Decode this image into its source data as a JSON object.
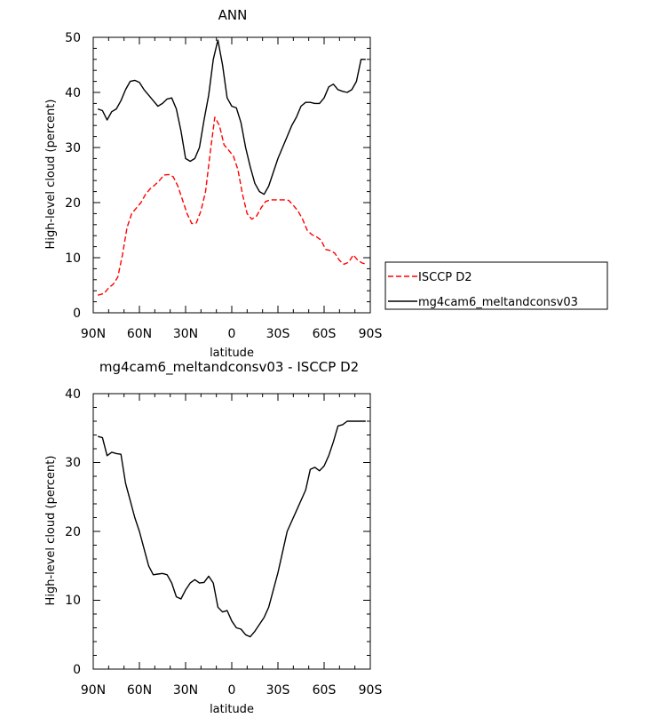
{
  "chart_data": [
    {
      "type": "line",
      "title": "ANN",
      "xlabel": "latitude",
      "ylabel": "High-level cloud (percent)",
      "x_ticklabels": [
        "90N",
        "60N",
        "30N",
        "0",
        "30S",
        "60S",
        "90S"
      ],
      "y_ticklabels": [
        "0",
        "10",
        "20",
        "30",
        "40",
        "50"
      ],
      "xlim": [
        90,
        -90
      ],
      "ylim": [
        0,
        50
      ],
      "legend_position": "right",
      "series": [
        {
          "name": "ISCCP D2",
          "color": "#ff0000",
          "style": "dashed",
          "x": [
            87,
            83,
            80,
            77,
            74,
            71,
            68,
            65,
            62,
            59,
            56,
            53,
            50,
            47,
            44,
            41,
            38,
            35,
            32,
            29,
            26,
            23,
            20,
            17,
            14,
            11,
            8,
            5,
            2,
            -1,
            -4,
            -7,
            -10,
            -13,
            -16,
            -19,
            -22,
            -25,
            -28,
            -31,
            -34,
            -37,
            -40,
            -43,
            -46,
            -49,
            -52,
            -55,
            -58,
            -61,
            -64,
            -67,
            -70,
            -73,
            -76,
            -79,
            -82,
            -85,
            -88
          ],
          "y": [
            3.2,
            3.5,
            4.5,
            5.2,
            6.5,
            10.5,
            15.5,
            18,
            19,
            20,
            21.5,
            22.5,
            23.2,
            24,
            25,
            25.1,
            24.7,
            23,
            20.5,
            18,
            16.2,
            16.3,
            18.5,
            22,
            29,
            35.5,
            34,
            30.5,
            29.5,
            28.5,
            26,
            21.5,
            18,
            17,
            17.5,
            19,
            20.2,
            20.5,
            20.5,
            20.5,
            20.5,
            20.4,
            19.5,
            18.5,
            17,
            15,
            14.2,
            13.8,
            13.2,
            11.5,
            11.3,
            10.8,
            9.5,
            8.8,
            9.2,
            10.5,
            9.5,
            9,
            8.8
          ],
          "x_visible_max": -89
        },
        {
          "name": "mg4cam6_meltandconsv03",
          "color": "#000000",
          "style": "solid",
          "x": [
            87,
            84,
            81,
            78,
            75,
            72,
            69,
            66,
            63,
            60,
            57,
            54,
            51,
            48,
            45,
            42,
            39,
            36,
            33,
            30,
            27,
            24,
            21,
            18,
            15,
            12,
            9,
            6,
            3,
            0,
            -3,
            -6,
            -9,
            -12,
            -15,
            -18,
            -21,
            -24,
            -27,
            -30,
            -33,
            -36,
            -39,
            -42,
            -45,
            -48,
            -51,
            -54,
            -57,
            -60,
            -63,
            -66,
            -69,
            -72,
            -75,
            -78,
            -81,
            -84,
            -87
          ],
          "y": [
            37,
            36.7,
            35,
            36.5,
            37,
            38.5,
            40.5,
            42,
            42.2,
            41.8,
            40.5,
            39.5,
            38.5,
            37.5,
            38,
            38.8,
            39,
            37,
            33,
            28,
            27.5,
            28,
            30,
            35,
            39.5,
            46,
            49.5,
            45,
            39,
            37.5,
            37.2,
            34.5,
            30,
            26.5,
            23.5,
            22,
            21.5,
            23,
            25.5,
            28,
            30,
            32,
            34,
            35.5,
            37.5,
            38.2,
            38.2,
            38,
            38,
            39,
            41,
            41.5,
            40.5,
            40.2,
            40,
            40.5,
            42,
            46,
            46
          ]
        }
      ]
    },
    {
      "type": "line",
      "title": "mg4cam6_meltandconsv03 - ISCCP D2",
      "xlabel": "latitude",
      "ylabel": "High-level cloud (percent)",
      "x_ticklabels": [
        "90N",
        "60N",
        "30N",
        "0",
        "30S",
        "60S",
        "90S"
      ],
      "y_ticklabels": [
        "0",
        "10",
        "20",
        "30",
        "40"
      ],
      "xlim": [
        90,
        -90
      ],
      "ylim": [
        0,
        40
      ],
      "series": [
        {
          "color": "#000000",
          "style": "solid",
          "x": [
            87,
            84,
            81,
            78,
            75,
            72,
            69,
            66,
            63,
            60,
            57,
            54,
            51,
            48,
            45,
            42,
            39,
            36,
            33,
            30,
            27,
            24,
            21,
            18,
            15,
            12,
            9,
            6,
            3,
            0,
            -3,
            -6,
            -9,
            -12,
            -15,
            -18,
            -21,
            -24,
            -27,
            -30,
            -33,
            -36,
            -39,
            -42,
            -45,
            -48,
            -51,
            -54,
            -57,
            -60,
            -63,
            -66,
            -69,
            -72,
            -75,
            -78,
            -81,
            -84,
            -87
          ],
          "y": [
            33.8,
            33.6,
            31,
            31.5,
            31.3,
            31.2,
            27,
            24.5,
            22,
            20,
            17.5,
            15,
            13.7,
            13.8,
            13.9,
            13.7,
            12.5,
            10.5,
            10.2,
            11.5,
            12.5,
            13,
            12.5,
            12.6,
            13.5,
            12.5,
            9,
            8.3,
            8.5,
            7,
            6,
            5.8,
            5,
            4.7,
            5.5,
            6.5,
            7.5,
            9,
            11.5,
            14,
            17,
            20,
            21.5,
            23,
            24.5,
            26,
            29,
            29.3,
            28.8,
            29.5,
            31,
            33,
            35.3,
            35.5,
            36,
            36,
            36,
            36,
            36
          ],
          "x_visible_max": -88.5
        }
      ]
    }
  ]
}
